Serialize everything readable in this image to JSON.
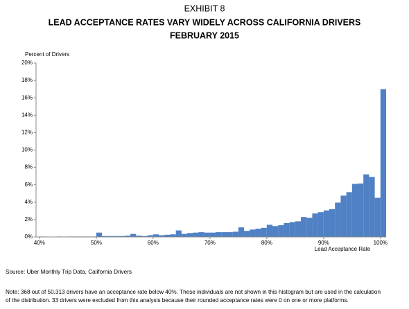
{
  "chart_data": {
    "type": "histogram",
    "title": [
      "EXHIBIT 8",
      "LEAD ACCEPTANCE RATES VARY WIDELY ACROSS CALIFORNIA DRIVERS",
      "FEBRUARY 2015"
    ],
    "ylabel": "Percent of Drivers",
    "xlabel": "Lead Acceptance Rate",
    "bins": [
      40,
      41,
      42,
      43,
      44,
      45,
      46,
      47,
      48,
      49,
      50,
      51,
      52,
      53,
      54,
      55,
      56,
      57,
      58,
      59,
      60,
      61,
      62,
      63,
      64,
      65,
      66,
      67,
      68,
      69,
      70,
      71,
      72,
      73,
      74,
      75,
      76,
      77,
      78,
      79,
      80,
      81,
      82,
      83,
      84,
      85,
      86,
      87,
      88,
      89,
      90,
      91,
      92,
      93,
      94,
      95,
      96,
      97,
      98,
      99,
      100,
      101
    ],
    "values": [
      0.05,
      0.02,
      0.02,
      0.05,
      0.02,
      0.05,
      0.05,
      0.05,
      0.05,
      0.05,
      0.5,
      0.1,
      0.1,
      0.1,
      0.1,
      0.15,
      0.35,
      0.15,
      0.1,
      0.2,
      0.3,
      0.2,
      0.25,
      0.3,
      0.75,
      0.35,
      0.45,
      0.5,
      0.55,
      0.5,
      0.5,
      0.55,
      0.55,
      0.55,
      0.6,
      1.1,
      0.7,
      0.85,
      0.95,
      1.05,
      1.4,
      1.25,
      1.35,
      1.6,
      1.7,
      1.8,
      2.3,
      2.2,
      2.7,
      2.85,
      3.05,
      3.2,
      3.95,
      4.75,
      5.15,
      6.1,
      6.15,
      7.2,
      6.9,
      4.5,
      17
    ],
    "color": "#4f81c4",
    "xlim": [
      39.4,
      101
    ],
    "xticks": [
      {
        "value": 40,
        "label": "40%"
      },
      {
        "value": 50,
        "label": "50%"
      },
      {
        "value": 60,
        "label": "60%"
      },
      {
        "value": 70,
        "label": "70%"
      },
      {
        "value": 80,
        "label": "80%"
      },
      {
        "value": 90,
        "label": "90%"
      },
      {
        "value": 100,
        "label": "100%"
      }
    ],
    "ylim": [
      0,
      20
    ],
    "yticks": [
      {
        "value": 0,
        "label": "0%"
      },
      {
        "value": 2,
        "label": "2%"
      },
      {
        "value": 4,
        "label": "4%"
      },
      {
        "value": 6,
        "label": "6%"
      },
      {
        "value": 8,
        "label": "8%"
      },
      {
        "value": 10,
        "label": "10%"
      },
      {
        "value": 12,
        "label": "12%"
      },
      {
        "value": 14,
        "label": "14%"
      },
      {
        "value": 16,
        "label": "16%"
      },
      {
        "value": 18,
        "label": "18%"
      },
      {
        "value": 20,
        "label": "20%"
      }
    ],
    "source": "Source: Uber Monthly Trip Data, California Drivers",
    "note": [
      "Note:  368 out of 50,313 drivers have an acceptance rate below 40%. These individuals are not shown in this histogram but are used in the calculation",
      "of the distribution. 33 drivers were excluded from this analysis because their rounded acceptance rates were 0 on one or more platforms."
    ]
  }
}
